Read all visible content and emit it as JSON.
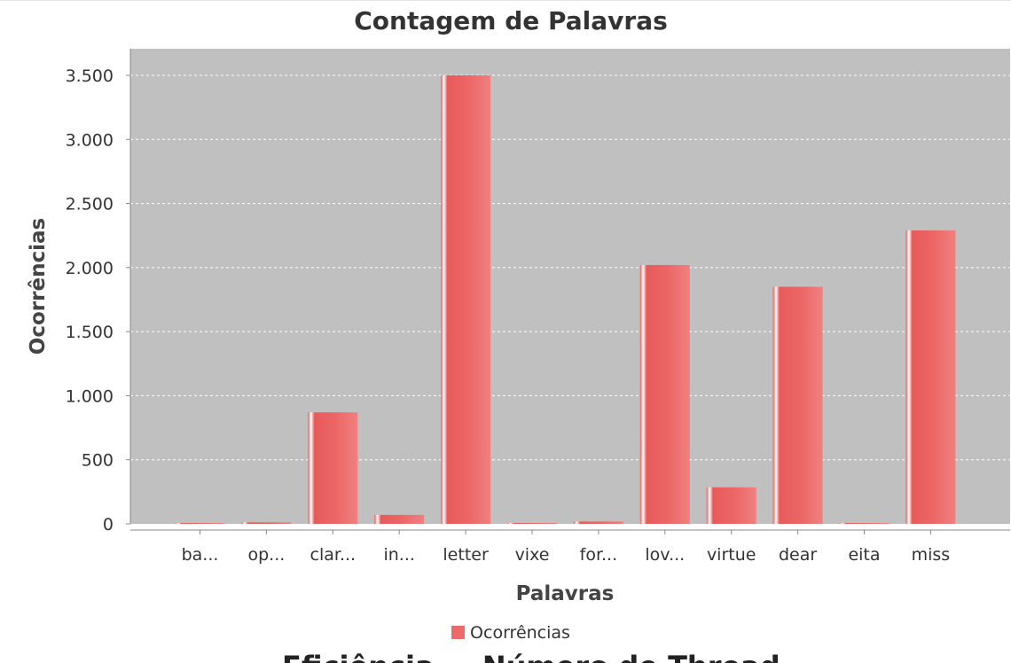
{
  "chart_data": {
    "type": "bar",
    "title": "Contagem de Palavras",
    "xlabel": "Palavras",
    "ylabel": "Ocorrências",
    "categories": [
      "ba...",
      "op...",
      "clar...",
      "in...",
      "letter",
      "vixe",
      "for...",
      "lov...",
      "virtue",
      "dear",
      "eita",
      "miss"
    ],
    "series": [
      {
        "name": "Ocorrências",
        "values": [
          1,
          12,
          870,
          70,
          3500,
          1,
          18,
          2020,
          285,
          1850,
          1,
          2290
        ]
      }
    ],
    "ylim": [
      0,
      3650
    ],
    "yticks": [
      0,
      500,
      1000,
      1500,
      2000,
      2500,
      3000,
      3500
    ],
    "ytick_labels": [
      "0",
      "500",
      "1.000",
      "1.500",
      "2.000",
      "2.500",
      "3.000",
      "3.500"
    ],
    "grid": true,
    "legend": "bottom-center",
    "colors": {
      "bar": "#ee6a6a",
      "plot_bg": "#c0c0c0",
      "grid": "#ffffff"
    }
  },
  "next_chart_title": "Eficiência — Número de Threads"
}
